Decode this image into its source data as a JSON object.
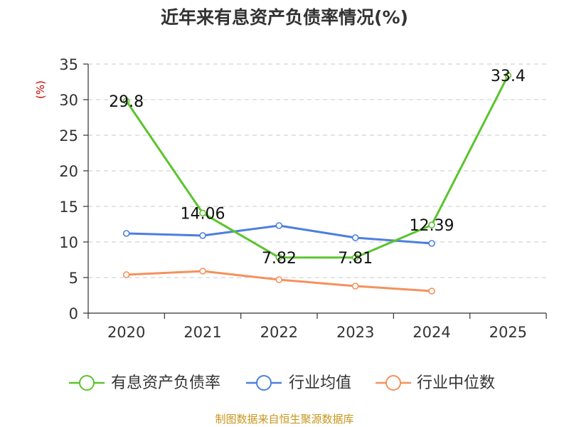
{
  "chart_data": {
    "type": "line",
    "title": "近年来有息资产负债率情况(%)",
    "ylabel": "(%)",
    "categories": [
      "2020",
      "2021",
      "2022",
      "2023",
      "2024",
      "2025"
    ],
    "ylim": [
      0,
      35
    ],
    "yticks": [
      0,
      5,
      10,
      15,
      20,
      25,
      30,
      35
    ],
    "grid": true,
    "legend_position": "bottom",
    "series": [
      {
        "name": "有息资产负债率",
        "color": "#5bc42d",
        "values": [
          29.8,
          14.06,
          7.82,
          7.81,
          12.39,
          33.4
        ],
        "labels": [
          "29.8",
          "14.06",
          "7.82",
          "7.81",
          "12.39",
          "33.4"
        ]
      },
      {
        "name": "行业均值",
        "color": "#4c7fdd",
        "values": [
          11.2,
          10.9,
          12.3,
          10.6,
          9.8,
          null
        ]
      },
      {
        "name": "行业中位数",
        "color": "#f5915c",
        "values": [
          5.4,
          5.9,
          4.7,
          3.8,
          3.1,
          null
        ]
      }
    ],
    "source": "制图数据来自恒生聚源数据库"
  }
}
